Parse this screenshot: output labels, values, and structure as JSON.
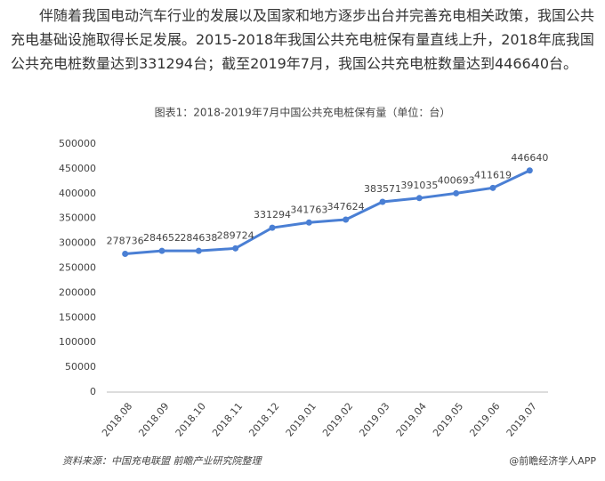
{
  "paragraph": "伴随着我国电动汽车行业的发展以及国家和地方逐步出台并完善充电相关政策，我国公共充电基础设施取得长足发展。2015-2018年我国公共充电桩保有量直线上升，2018年底我国公共充电桩数量达到331294台；截至2019年7月，我国公共充电桩数量达到446640台。",
  "chart_data": {
    "type": "line",
    "title": "图表1：2018-2019年7月中国公共充电桩保有量（单位：台）",
    "categories": [
      "2018.08",
      "2018.09",
      "2018.10",
      "2018.11",
      "2018.12",
      "2019.01",
      "2019.02",
      "2019.03",
      "2019.04",
      "2019.05",
      "2019.06",
      "2019.07"
    ],
    "values": [
      278736,
      284652,
      284638,
      289724,
      331294,
      341763,
      347624,
      383571,
      391035,
      400693,
      411619,
      446640
    ],
    "color": "#4a7fd4",
    "ylim": [
      0,
      500000
    ],
    "yticks": [
      0,
      50000,
      100000,
      150000,
      200000,
      250000,
      300000,
      350000,
      400000,
      450000,
      500000
    ],
    "grid": false
  },
  "source": "资料来源：中国充电联盟 前瞻产业研究院整理",
  "credit": "@前瞻经济学人APP"
}
